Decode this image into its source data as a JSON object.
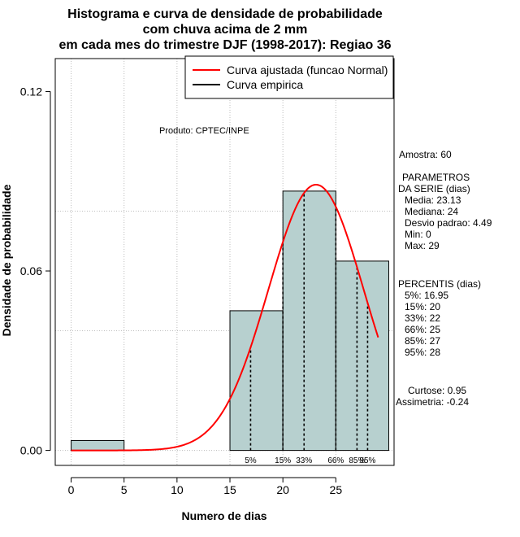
{
  "chart_data": {
    "type": "bar",
    "title_lines": [
      "Histograma e curva de densidade de probabilidade",
      "com chuva acima de 2 mm",
      "em cada mes do trimestre DJF (1998-2017): Regiao 36"
    ],
    "xlabel": "Numero de dias",
    "ylabel": "Densidade de probabilidade",
    "xlim": [
      -1.5,
      30.5
    ],
    "ylim": [
      -0.005,
      0.131
    ],
    "x_ticks": [
      0,
      5,
      10,
      15,
      20,
      25
    ],
    "x_tick_labels": [
      "0",
      "5",
      "10",
      "15",
      "20",
      "25"
    ],
    "y_ticks": [
      0.0,
      0.06,
      0.12
    ],
    "y_tick_labels": [
      "0.00",
      "0.06",
      "0.12"
    ],
    "grid": true,
    "bins": [
      {
        "x0": 0,
        "x1": 5,
        "density": 0.0033
      },
      {
        "x0": 15,
        "x1": 20,
        "density": 0.0467
      },
      {
        "x0": 20,
        "x1": 25,
        "density": 0.0867
      },
      {
        "x0": 25,
        "x1": 30,
        "density": 0.0633
      }
    ],
    "normal_curve": {
      "mean": 23.13,
      "sd": 4.49,
      "x_from": 0,
      "x_to": 29
    },
    "percentile_lines": [
      {
        "label": "5%",
        "x": 16.95
      },
      {
        "label": "15%",
        "x": 20
      },
      {
        "label": "33%",
        "x": 22
      },
      {
        "label": "66%",
        "x": 25
      },
      {
        "label": "85%",
        "x": 27
      },
      {
        "label": "95%",
        "x": 28
      }
    ],
    "legend": {
      "position": "top-right",
      "entries": [
        {
          "label": "Curva ajustada (funcao Normal)",
          "color": "#ff0000"
        },
        {
          "label": "Curva empirica",
          "color": "#000000"
        }
      ]
    },
    "annotations": {
      "produto": "Produto: CPTEC/INPE",
      "amostra": "Amostra: 60",
      "parametros_title_1": "PARAMETROS",
      "parametros_title_2": "DA SERIE (dias)",
      "media": "Media: 23.13",
      "mediana": "Mediana: 24",
      "desvio": "Desvio padrao: 4.49",
      "min": "Min: 0",
      "max": "Max: 29",
      "percentis_title": "PERCENTIS (dias)",
      "p5": "5%: 16.95",
      "p15": "15%: 20",
      "p33": "33%: 22",
      "p66": "66%: 25",
      "p85": "85%: 27",
      "p95": "95%: 28",
      "curtose": "Curtose: 0.95",
      "assimetria": "Assimetria: -0.24"
    },
    "colors": {
      "bar_fill": "#b7d0cf",
      "curve": "#ff0000",
      "grid": "#bdbdbd"
    }
  }
}
